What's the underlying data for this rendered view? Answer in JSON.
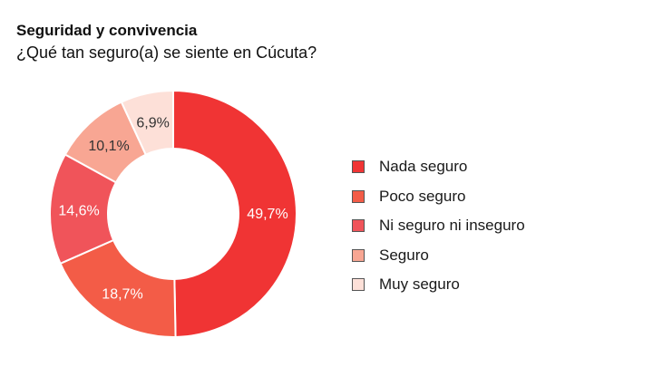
{
  "chart_data": {
    "type": "pie",
    "title": "Seguridad y convivencia",
    "subtitle": "¿Qué tan seguro(a) se siente en Cúcuta?",
    "donut": true,
    "legend_position": "right",
    "slices": [
      {
        "label": "Nada seguro",
        "value": 49.7,
        "display": "49,7%",
        "color": "#f03434",
        "text_color": "#ffffff"
      },
      {
        "label": "Poco seguro",
        "value": 18.7,
        "display": "18,7%",
        "color": "#f35c47",
        "text_color": "#ffffff"
      },
      {
        "label": "Ni seguro ni inseguro",
        "value": 14.6,
        "display": "14,6%",
        "color": "#f0545a",
        "text_color": "#ffffff"
      },
      {
        "label": "Seguro",
        "value": 10.1,
        "display": "10,1%",
        "color": "#f8a693",
        "text_color": "#333333"
      },
      {
        "label": "Muy seguro",
        "value": 6.9,
        "display": "6,9%",
        "color": "#fde0d8",
        "text_color": "#333333"
      }
    ]
  }
}
